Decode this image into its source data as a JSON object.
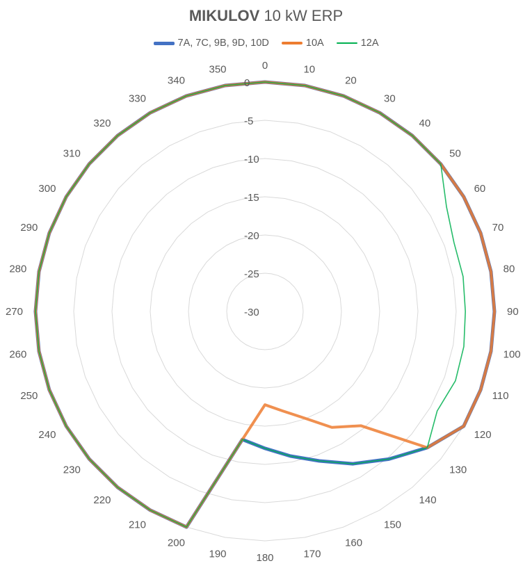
{
  "chart_data": {
    "type": "radar",
    "title_bold": "MIKULOV",
    "title_rest": "10 kW ERP",
    "angles": [
      0,
      10,
      20,
      30,
      40,
      50,
      60,
      70,
      80,
      90,
      100,
      110,
      120,
      130,
      140,
      150,
      160,
      170,
      180,
      190,
      200,
      210,
      220,
      230,
      240,
      250,
      260,
      270,
      280,
      290,
      300,
      310,
      320,
      330,
      340,
      350
    ],
    "radial_ticks": [
      0,
      -5,
      -10,
      -15,
      -20,
      -25,
      -30
    ],
    "rlim": [
      -30,
      0
    ],
    "legend_position": "top",
    "series": [
      {
        "name": "7A, 7C, 9B, 9D, 10D",
        "color": "#4472C4",
        "values": [
          0,
          0,
          0,
          0,
          0,
          0,
          0,
          0,
          0,
          0,
          0,
          0,
          0,
          -2.3,
          -4.8,
          -7,
          -9.2,
          -10.8,
          -12.1,
          -13,
          0,
          0,
          0,
          0,
          0,
          0,
          0,
          0,
          0,
          0,
          0,
          0,
          0,
          0,
          0,
          0
        ]
      },
      {
        "name": "10A",
        "color": "#ED7D31",
        "values": [
          0,
          0,
          0,
          0,
          0,
          0,
          0,
          0,
          0,
          0,
          0,
          0,
          0,
          -2.3,
          -10.5,
          -12.5,
          -15.2,
          -16.8,
          -17.8,
          -13,
          0,
          0,
          0,
          0,
          0,
          0,
          0,
          0,
          0,
          0,
          0,
          0,
          0,
          0,
          0,
          0
        ]
      },
      {
        "name": "12A",
        "color": "#00B050",
        "values": [
          0,
          0,
          0,
          0,
          0,
          0,
          -2.6,
          -3.7,
          -3.7,
          -3.8,
          -3.6,
          -3.5,
          -4,
          -2.3,
          -4.8,
          -7,
          -9.2,
          -10.8,
          -12.1,
          -13,
          0,
          0,
          0,
          0,
          0,
          0,
          0,
          0,
          0,
          0,
          0,
          0,
          0,
          0,
          0,
          0
        ]
      }
    ]
  }
}
